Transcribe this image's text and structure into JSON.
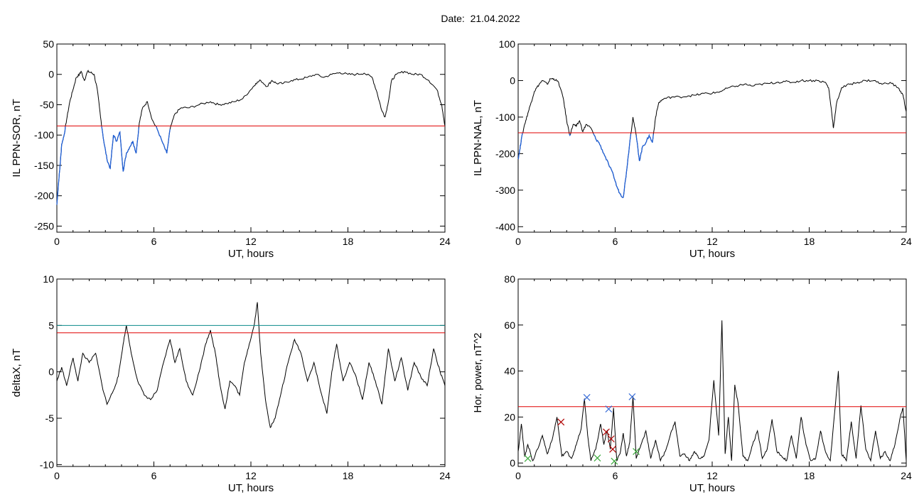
{
  "page_title": "Date:  21.04.2022",
  "chart_data": [
    {
      "type": "line",
      "id": "sor",
      "ylabel": "IL PPN-SOR, nT",
      "xlabel": "UT, hours",
      "xlim": [
        0,
        24
      ],
      "ylim": [
        -260,
        50
      ],
      "xticks": [
        0,
        6,
        12,
        18,
        24
      ],
      "yticks": [
        50,
        0,
        -50,
        -100,
        -150,
        -200,
        -250
      ],
      "threshold": {
        "value": -85,
        "color": "#e00000"
      },
      "highlight_color": "#1f5fd6",
      "series": [
        {
          "name": "",
          "color": "#000000",
          "x": [
            0,
            0.1,
            0.2,
            0.3,
            0.45,
            0.6,
            0.8,
            1.0,
            1.2,
            1.4,
            1.5,
            1.7,
            1.9,
            2.1,
            2.3,
            2.5,
            2.7,
            2.9,
            3.1,
            3.3,
            3.5,
            3.7,
            3.9,
            4.1,
            4.3,
            4.5,
            4.7,
            4.9,
            5.1,
            5.3,
            5.6,
            5.9,
            6.2,
            6.5,
            6.8,
            7.0,
            7.3,
            7.7,
            8.2,
            8.8,
            9.5,
            10,
            10.5,
            11,
            11.5,
            12,
            12.3,
            12.6,
            13,
            13.3,
            13.6,
            14,
            14.5,
            15,
            15.5,
            16,
            16.5,
            17,
            17.5,
            18,
            18.5,
            19,
            19.5,
            19.8,
            20.1,
            20.3,
            20.5,
            20.7,
            21,
            21.5,
            22,
            22.5,
            23,
            23.5,
            23.8,
            24
          ],
          "y": [
            -215,
            -180,
            -150,
            -115,
            -100,
            -75,
            -45,
            -25,
            -5,
            0,
            5,
            -10,
            5,
            3,
            0,
            -25,
            -70,
            -110,
            -140,
            -155,
            -100,
            -110,
            -95,
            -160,
            -130,
            -120,
            -110,
            -130,
            -80,
            -55,
            -45,
            -75,
            -90,
            -110,
            -130,
            -90,
            -65,
            -55,
            -55,
            -50,
            -45,
            -50,
            -48,
            -45,
            -40,
            -25,
            -15,
            -10,
            -20,
            -10,
            -15,
            -15,
            -10,
            -8,
            -5,
            0,
            -5,
            0,
            3,
            0,
            0,
            2,
            -5,
            -30,
            -60,
            -70,
            -45,
            -10,
            0,
            5,
            0,
            0,
            -10,
            -25,
            -50,
            -85
          ]
        }
      ]
    },
    {
      "type": "line",
      "id": "nal",
      "ylabel": "IL PPN-NAL, nT",
      "xlabel": "UT, hours",
      "xlim": [
        0,
        24
      ],
      "ylim": [
        -415,
        100
      ],
      "xticks": [
        0,
        6,
        12,
        18,
        24
      ],
      "yticks": [
        100,
        0,
        -100,
        -200,
        -300,
        -400
      ],
      "threshold": {
        "value": -143,
        "color": "#e00000"
      },
      "highlight_color": "#1f5fd6",
      "series": [
        {
          "name": "",
          "color": "#000000",
          "x": [
            0,
            0.1,
            0.2,
            0.4,
            0.6,
            0.8,
            1.0,
            1.3,
            1.5,
            1.8,
            2.0,
            2.2,
            2.5,
            2.8,
            3.0,
            3.2,
            3.4,
            3.6,
            3.8,
            4.0,
            4.2,
            4.5,
            4.8,
            5.0,
            5.3,
            5.6,
            5.9,
            6.1,
            6.3,
            6.5,
            6.7,
            6.9,
            7.1,
            7.3,
            7.5,
            7.7,
            7.9,
            8.1,
            8.3,
            8.5,
            8.7,
            9,
            9.5,
            10,
            10.5,
            11,
            11.5,
            12,
            12.5,
            13,
            13.5,
            14,
            14.5,
            15,
            15.5,
            16,
            16.5,
            17,
            17.5,
            18,
            18.5,
            19,
            19.2,
            19.4,
            19.5,
            19.7,
            20,
            20.5,
            21,
            21.5,
            22,
            22.5,
            23,
            23.5,
            23.8,
            24
          ],
          "y": [
            -215,
            -190,
            -160,
            -120,
            -90,
            -60,
            -30,
            -10,
            0,
            -10,
            5,
            5,
            -5,
            -50,
            -110,
            -150,
            -120,
            -125,
            -110,
            -140,
            -120,
            -130,
            -160,
            -170,
            -200,
            -230,
            -260,
            -290,
            -310,
            -320,
            -250,
            -170,
            -100,
            -150,
            -220,
            -180,
            -170,
            -150,
            -170,
            -100,
            -60,
            -50,
            -45,
            -45,
            -42,
            -40,
            -35,
            -35,
            -30,
            -20,
            -15,
            -10,
            -15,
            -10,
            -8,
            -5,
            -3,
            -5,
            0,
            0,
            0,
            -5,
            -20,
            -90,
            -130,
            -60,
            -20,
            -10,
            -5,
            0,
            0,
            -10,
            -5,
            -20,
            -40,
            -85
          ]
        }
      ]
    },
    {
      "type": "line",
      "id": "deltax",
      "ylabel": "deltaX, nT",
      "xlabel": "UT, hours",
      "xlim": [
        0,
        24
      ],
      "ylim": [
        -10.2,
        10
      ],
      "xticks": [
        0,
        6,
        12,
        18,
        24
      ],
      "yticks": [
        10,
        5,
        0,
        -5,
        -10
      ],
      "threshold": {
        "value": 4.2,
        "color": "#e00000"
      },
      "threshold2": {
        "value": 5.0,
        "color": "#0a8a8a"
      },
      "series": [
        {
          "name": "",
          "color": "#000000",
          "x": [
            0,
            0.3,
            0.6,
            1.0,
            1.3,
            1.6,
            2.0,
            2.4,
            2.8,
            3.1,
            3.5,
            3.8,
            4.1,
            4.3,
            4.6,
            5.0,
            5.4,
            5.8,
            6.2,
            6.6,
            7.0,
            7.3,
            7.6,
            8.0,
            8.4,
            8.8,
            9.2,
            9.5,
            9.8,
            10.1,
            10.4,
            10.7,
            11.0,
            11.3,
            11.6,
            11.9,
            12.2,
            12.4,
            12.6,
            12.9,
            13.2,
            13.5,
            13.9,
            14.3,
            14.7,
            15.1,
            15.5,
            15.9,
            16.3,
            16.7,
            17.0,
            17.3,
            17.7,
            18.1,
            18.5,
            18.9,
            19.3,
            19.7,
            20.1,
            20.5,
            20.9,
            21.3,
            21.7,
            22.1,
            22.5,
            22.9,
            23.3,
            23.7,
            24
          ],
          "y": [
            -1,
            0.5,
            -1.5,
            1.5,
            -1,
            2,
            1,
            2,
            -1.5,
            -3.5,
            -2,
            -0.5,
            3,
            5,
            2,
            -1,
            -2.5,
            -3,
            -2,
            1,
            3.5,
            1,
            2.5,
            -1,
            -2.5,
            0,
            3,
            4.5,
            2,
            -1.5,
            -4,
            -1,
            -1.5,
            -2.5,
            1,
            3,
            5,
            7.5,
            2,
            -3,
            -6,
            -5,
            -2,
            1,
            3.5,
            2,
            -1,
            1,
            -2,
            -4.5,
            0,
            3,
            -1,
            1,
            -0.5,
            -3,
            1,
            -1,
            -3.5,
            2.5,
            -1,
            1.5,
            -2,
            1,
            -0.5,
            -1.5,
            2.5,
            0,
            -1.5
          ]
        }
      ]
    },
    {
      "type": "line",
      "id": "power",
      "ylabel": "Hor. power, nT^2",
      "xlabel": "UT, hours",
      "xlim": [
        0,
        24
      ],
      "ylim": [
        -1.5,
        80
      ],
      "xticks": [
        0,
        6,
        12,
        18,
        24
      ],
      "yticks": [
        80,
        60,
        40,
        20,
        0
      ],
      "threshold": {
        "value": 24.5,
        "color": "#e00000"
      },
      "series": [
        {
          "name": "",
          "color": "#000000",
          "x": [
            0,
            0.2,
            0.4,
            0.6,
            0.9,
            1.2,
            1.5,
            1.8,
            2.1,
            2.4,
            2.7,
            3.0,
            3.3,
            3.6,
            3.9,
            4.1,
            4.3,
            4.5,
            4.8,
            5.1,
            5.3,
            5.5,
            5.7,
            5.9,
            6.1,
            6.3,
            6.5,
            6.7,
            6.9,
            7.1,
            7.3,
            7.6,
            7.9,
            8.2,
            8.5,
            8.8,
            9.1,
            9.4,
            9.7,
            10.0,
            10.3,
            10.6,
            10.9,
            11.2,
            11.5,
            11.8,
            12.1,
            12.4,
            12.6,
            12.8,
            13.0,
            13.2,
            13.4,
            13.6,
            13.9,
            14.2,
            14.5,
            14.8,
            15.1,
            15.4,
            15.7,
            16.0,
            16.3,
            16.6,
            16.9,
            17.2,
            17.5,
            17.8,
            18.1,
            18.4,
            18.7,
            19.0,
            19.3,
            19.6,
            19.8,
            20.0,
            20.3,
            20.6,
            20.9,
            21.2,
            21.5,
            21.8,
            22.1,
            22.4,
            22.7,
            23.0,
            23.3,
            23.6,
            23.8,
            24
          ],
          "y": [
            5,
            17,
            3,
            8,
            1,
            6,
            12,
            4,
            10,
            20,
            3,
            5,
            2,
            8,
            15,
            28,
            12,
            1,
            6,
            17,
            8,
            14,
            6,
            24,
            1,
            4,
            13,
            3,
            9,
            29,
            2,
            8,
            14,
            2,
            10,
            1,
            5,
            12,
            18,
            3,
            4,
            1,
            5,
            2,
            3,
            10,
            36,
            12,
            62,
            4,
            20,
            1,
            34,
            26,
            3,
            1,
            8,
            14,
            2,
            6,
            19,
            5,
            3,
            1,
            12,
            2,
            20,
            8,
            1,
            2,
            14,
            5,
            1,
            24,
            40,
            4,
            1,
            18,
            2,
            25,
            6,
            1,
            14,
            2,
            5,
            1,
            8,
            19,
            24,
            1
          ]
        }
      ],
      "markers": [
        {
          "x": 4.25,
          "y": 28.5,
          "color": "#3b6ed8"
        },
        {
          "x": 5.6,
          "y": 23.5,
          "color": "#3b6ed8"
        },
        {
          "x": 7.05,
          "y": 28.8,
          "color": "#3b6ed8"
        },
        {
          "x": 2.65,
          "y": 17.8,
          "color": "#b00000"
        },
        {
          "x": 5.45,
          "y": 13.5,
          "color": "#b00000"
        },
        {
          "x": 5.75,
          "y": 10.5,
          "color": "#b00000"
        },
        {
          "x": 5.85,
          "y": 6.0,
          "color": "#b00000"
        },
        {
          "x": 0.6,
          "y": 2.0,
          "color": "#3aa83a"
        },
        {
          "x": 4.9,
          "y": 2.2,
          "color": "#3aa83a"
        },
        {
          "x": 5.95,
          "y": 0.8,
          "color": "#3aa83a"
        },
        {
          "x": 7.3,
          "y": 5.0,
          "color": "#3aa83a"
        }
      ]
    }
  ]
}
